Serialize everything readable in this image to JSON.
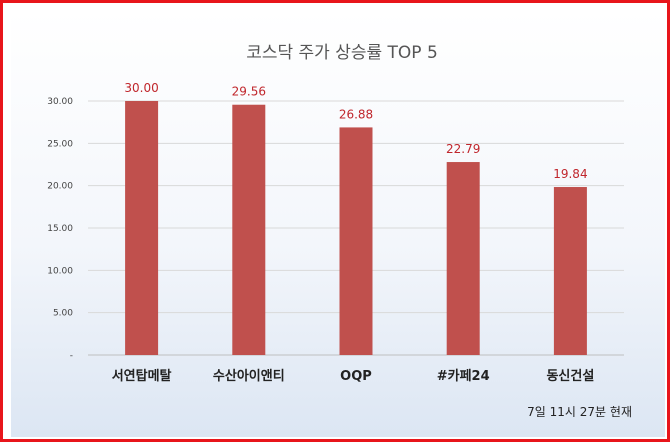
{
  "chart_data": {
    "type": "bar",
    "title": "코스닥 주가 상승률 TOP 5",
    "categories": [
      "서연탑메탈",
      "수산아이앤티",
      "OQP",
      "#카페24",
      "동신건설"
    ],
    "values": [
      30.0,
      29.56,
      26.88,
      22.79,
      19.84
    ],
    "value_labels": [
      "30.00",
      "29.56",
      "26.88",
      "22.79",
      "19.84"
    ],
    "yticks": [
      "-",
      "5.00",
      "10.00",
      "15.00",
      "20.00",
      "25.00",
      "30.00"
    ],
    "ylim": [
      0,
      30
    ],
    "xlabel": "",
    "ylabel": "",
    "grid": true,
    "legend": "none",
    "bar_color": "#c0504d",
    "label_color": "#c0262c"
  },
  "footnote": "7일 11시  27분 현재",
  "frame_color": "#e8151b"
}
